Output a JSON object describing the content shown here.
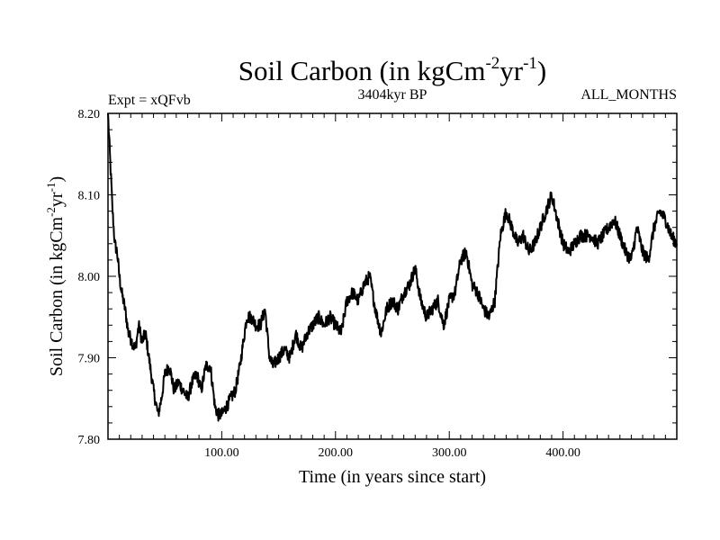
{
  "chart_data": {
    "type": "line",
    "title": {
      "prefix": "Soil Carbon (in kgCm",
      "sup1": "-2",
      "mid": "yr",
      "sup2": "-1",
      "suffix": ")"
    },
    "subtitle_left": "Expt = xQFvb",
    "subtitle_center": "3404kyr BP",
    "subtitle_right": "ALL_MONTHS",
    "xlabel": "Time (in years since start)",
    "ylabel": {
      "prefix": "Soil Carbon (in kgCm",
      "sup1": "-2",
      "mid": "yr",
      "sup2": "-1",
      "suffix": ")"
    },
    "xlim": [
      0,
      500
    ],
    "ylim": [
      7.8,
      8.2
    ],
    "xticks": [
      100,
      200,
      300,
      400
    ],
    "xtick_labels": [
      "100.00",
      "200.00",
      "300.00",
      "400.00"
    ],
    "yticks": [
      7.8,
      7.9,
      8.0,
      8.1,
      8.2
    ],
    "ytick_labels": [
      "7.80",
      "7.90",
      "8.00",
      "8.10",
      "8.20"
    ],
    "series": [
      {
        "name": "Soil Carbon",
        "color": "#000000",
        "x": [
          0,
          2,
          4,
          6,
          8,
          10,
          12,
          15,
          18,
          21,
          24,
          27,
          30,
          33,
          36,
          40,
          44,
          47,
          50,
          54,
          58,
          62,
          66,
          70,
          74,
          78,
          82,
          86,
          90,
          94,
          97,
          100,
          104,
          108,
          112,
          116,
          120,
          122,
          126,
          130,
          134,
          138,
          142,
          145,
          150,
          155,
          160,
          165,
          170,
          175,
          180,
          185,
          190,
          195,
          200,
          205,
          210,
          215,
          220,
          225,
          230,
          235,
          240,
          245,
          250,
          255,
          260,
          265,
          270,
          275,
          280,
          285,
          290,
          295,
          300,
          305,
          310,
          315,
          320,
          325,
          330,
          335,
          340,
          345,
          350,
          355,
          360,
          365,
          370,
          375,
          380,
          385,
          390,
          395,
          400,
          405,
          410,
          415,
          420,
          425,
          430,
          435,
          440,
          445,
          450,
          455,
          460,
          465,
          470,
          475,
          480,
          485,
          490,
          495,
          500
        ],
        "values": [
          8.2,
          8.14,
          8.08,
          8.04,
          8.03,
          8.0,
          7.98,
          7.96,
          7.93,
          7.92,
          7.91,
          7.94,
          7.92,
          7.93,
          7.9,
          7.86,
          7.83,
          7.85,
          7.88,
          7.89,
          7.86,
          7.87,
          7.86,
          7.85,
          7.87,
          7.88,
          7.86,
          7.89,
          7.89,
          7.84,
          7.83,
          7.83,
          7.84,
          7.85,
          7.86,
          7.89,
          7.93,
          7.95,
          7.95,
          7.94,
          7.94,
          7.96,
          7.9,
          7.89,
          7.9,
          7.91,
          7.9,
          7.93,
          7.91,
          7.93,
          7.94,
          7.95,
          7.94,
          7.95,
          7.94,
          7.93,
          7.97,
          7.98,
          7.97,
          7.99,
          8.0,
          7.96,
          7.93,
          7.96,
          7.97,
          7.96,
          7.98,
          7.99,
          8.01,
          7.97,
          7.95,
          7.96,
          7.97,
          7.94,
          7.97,
          7.98,
          8.02,
          8.03,
          7.99,
          7.98,
          7.96,
          7.95,
          7.97,
          8.05,
          8.08,
          8.06,
          8.04,
          8.05,
          8.03,
          8.04,
          8.06,
          8.08,
          8.1,
          8.07,
          8.04,
          8.03,
          8.04,
          8.05,
          8.05,
          8.05,
          8.04,
          8.05,
          8.06,
          8.07,
          8.05,
          8.03,
          8.02,
          8.06,
          8.03,
          8.02,
          8.06,
          8.08,
          8.07,
          8.05,
          8.04
        ]
      }
    ]
  }
}
